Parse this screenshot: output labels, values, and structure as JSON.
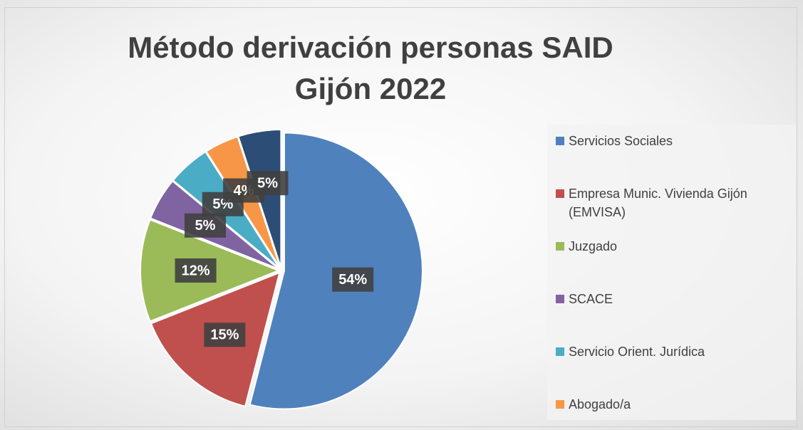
{
  "chart_data": {
    "type": "pie",
    "title": "Método derivación personas SAID Gijón 2022",
    "categories": [
      "Servicios Sociales",
      "Empresa Munic. Vivienda Gijón (EMVISA)",
      "Juzgado",
      "SCACE",
      "Servicio Orient. Jurídica",
      "Abogado/a",
      null
    ],
    "values": [
      54,
      15,
      12,
      5,
      5,
      4,
      5
    ],
    "value_labels": [
      "54%",
      "15%",
      "12%",
      "5%",
      "5%",
      "4%",
      "5%"
    ],
    "colors": [
      "#4f81bd",
      "#c0504d",
      "#9bbb59",
      "#8064a2",
      "#4bacc6",
      "#f79646",
      "#2c4d75"
    ],
    "legend": "right"
  }
}
